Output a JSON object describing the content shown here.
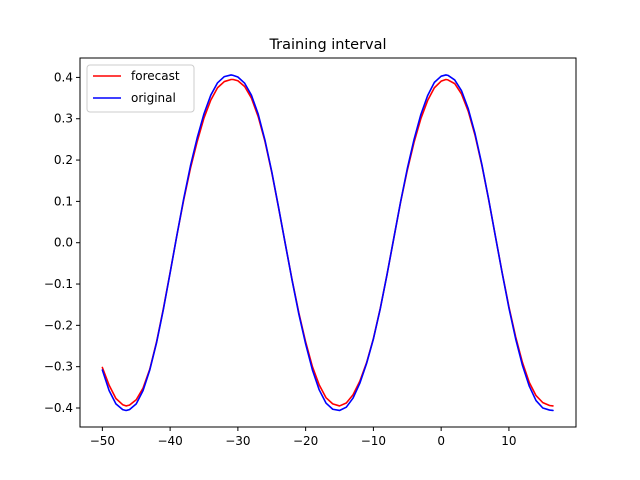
{
  "chart_data": {
    "type": "line",
    "title": "Training interval",
    "xlabel": "",
    "ylabel": "",
    "xlim": [
      -53.3,
      19.9
    ],
    "ylim": [
      -0.446,
      0.447
    ],
    "x_ticks": [
      -50,
      -40,
      -30,
      -20,
      -10,
      0,
      10
    ],
    "x_tick_labels": [
      "−50",
      "−40",
      "−30",
      "−20",
      "−10",
      "0",
      "10"
    ],
    "y_ticks": [
      -0.4,
      -0.3,
      -0.2,
      -0.1,
      0.0,
      0.1,
      0.2,
      0.3,
      0.4
    ],
    "y_tick_labels": [
      "−0.4",
      "−0.3",
      "−0.2",
      "−0.1",
      "0.0",
      "0.1",
      "0.2",
      "0.3",
      "0.4"
    ],
    "grid": false,
    "legend_position": "top-left",
    "series": [
      {
        "name": "forecast",
        "color": "#ff0000",
        "x": [
          -50,
          -49,
          -48,
          -47,
          -46.5,
          -46,
          -45,
          -44,
          -43,
          -42,
          -41,
          -40,
          -39,
          -38,
          -37,
          -36,
          -35,
          -34,
          -33,
          -32,
          -31,
          -30.7,
          -30,
          -29,
          -28,
          -27,
          -26,
          -25,
          -24,
          -23,
          -22,
          -21,
          -20,
          -19,
          -18,
          -17,
          -16,
          -15,
          -14,
          -13,
          -12,
          -11,
          -10,
          -9,
          -8,
          -7,
          -6,
          -5,
          -4,
          -3,
          -2,
          -1,
          0,
          0.7,
          1,
          2,
          3,
          4,
          5,
          6,
          7,
          8,
          9,
          10,
          11,
          12,
          13,
          14,
          15,
          16,
          16.5
        ],
        "y": [
          -0.302,
          -0.345,
          -0.377,
          -0.392,
          -0.395,
          -0.393,
          -0.38,
          -0.352,
          -0.306,
          -0.24,
          -0.16,
          -0.072,
          0.018,
          0.103,
          0.18,
          0.245,
          0.302,
          0.345,
          0.375,
          0.39,
          0.395,
          0.395,
          0.392,
          0.378,
          0.35,
          0.305,
          0.245,
          0.17,
          0.085,
          -0.003,
          -0.09,
          -0.17,
          -0.24,
          -0.3,
          -0.344,
          -0.375,
          -0.39,
          -0.395,
          -0.388,
          -0.368,
          -0.335,
          -0.29,
          -0.232,
          -0.16,
          -0.078,
          0.01,
          0.097,
          0.175,
          0.243,
          0.3,
          0.344,
          0.375,
          0.391,
          0.395,
          0.394,
          0.385,
          0.36,
          0.318,
          0.26,
          0.188,
          0.105,
          0.016,
          -0.072,
          -0.155,
          -0.228,
          -0.29,
          -0.338,
          -0.37,
          -0.387,
          -0.394,
          -0.395
        ]
      },
      {
        "name": "original",
        "color": "#0000ff",
        "x": [
          -50,
          -49,
          -48,
          -47,
          -46.5,
          -46,
          -45,
          -44,
          -43,
          -42,
          -41,
          -40,
          -39,
          -38,
          -37,
          -36,
          -35,
          -34,
          -33,
          -32,
          -31,
          -30.7,
          -30,
          -29,
          -28,
          -27,
          -26,
          -25,
          -24,
          -23,
          -22,
          -21,
          -20,
          -19,
          -18,
          -17,
          -16,
          -15,
          -14,
          -13,
          -12,
          -11,
          -10,
          -9,
          -8,
          -7,
          -6,
          -5,
          -4,
          -3,
          -2,
          -1,
          0,
          0.7,
          1,
          2,
          3,
          4,
          5,
          6,
          7,
          8,
          9,
          10,
          11,
          12,
          13,
          14,
          15,
          16,
          16.5
        ],
        "y": [
          -0.308,
          -0.358,
          -0.39,
          -0.404,
          -0.406,
          -0.404,
          -0.39,
          -0.358,
          -0.308,
          -0.242,
          -0.162,
          -0.073,
          0.018,
          0.106,
          0.186,
          0.254,
          0.312,
          0.357,
          0.387,
          0.402,
          0.406,
          0.405,
          0.401,
          0.386,
          0.357,
          0.311,
          0.248,
          0.172,
          0.086,
          -0.003,
          -0.091,
          -0.173,
          -0.245,
          -0.308,
          -0.356,
          -0.388,
          -0.403,
          -0.406,
          -0.398,
          -0.376,
          -0.34,
          -0.292,
          -0.233,
          -0.161,
          -0.078,
          0.01,
          0.098,
          0.179,
          0.25,
          0.31,
          0.356,
          0.388,
          0.403,
          0.406,
          0.405,
          0.394,
          0.368,
          0.324,
          0.264,
          0.19,
          0.106,
          0.016,
          -0.073,
          -0.158,
          -0.233,
          -0.297,
          -0.347,
          -0.382,
          -0.4,
          -0.405,
          -0.406
        ]
      }
    ]
  }
}
